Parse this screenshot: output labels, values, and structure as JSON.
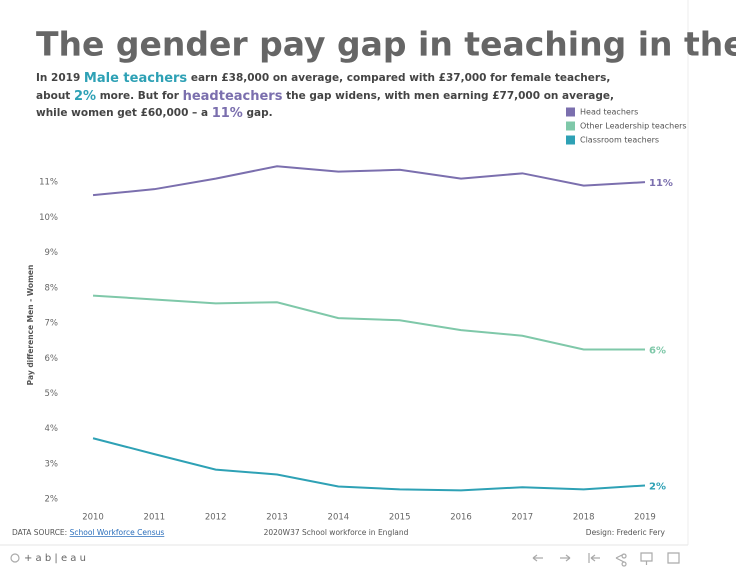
{
  "chart_data": {
    "type": "line",
    "title": "The gender pay gap in teaching in the UK",
    "subtitle_lines": [
      [
        "In 2019 ",
        "Male teachers",
        " earn £38,000 on average, compared with £37,000 for female teachers,"
      ],
      [
        "about ",
        "2%",
        " more. But for ",
        "headteachers",
        " the gap widens, with men earning £77,000 on average,"
      ],
      [
        "while women get £60,000 – a ",
        "11%",
        " gap."
      ]
    ],
    "y_label": "Pay difference Men - Women",
    "x": [
      2010,
      2011,
      2012,
      2013,
      2014,
      2015,
      2016,
      2017,
      2018,
      2019
    ],
    "xlim": [
      2009.6,
      2019.45
    ],
    "xticks": [
      2010,
      2011,
      2012,
      2013,
      2014,
      2015,
      2016,
      2017,
      2018,
      2019
    ],
    "ylim": [
      1.75,
      11.6
    ],
    "yticks": [
      {
        "value": 2,
        "label": "2%"
      },
      {
        "value": 3,
        "label": "3%"
      },
      {
        "value": 4,
        "label": "4%"
      },
      {
        "value": 5,
        "label": "5%"
      },
      {
        "value": 6,
        "label": "6%"
      },
      {
        "value": 7,
        "label": "7%"
      },
      {
        "value": 8,
        "label": "8%"
      },
      {
        "value": 9,
        "label": "9%"
      },
      {
        "value": 10,
        "label": "10%"
      },
      {
        "value": 11,
        "label": "11%"
      }
    ],
    "grid": false,
    "series": [
      {
        "name": "Head teachers",
        "color": "#7b6fae",
        "values": [
          10.63,
          10.8,
          11.1,
          11.45,
          11.3,
          11.35,
          11.1,
          11.25,
          10.9,
          11.0
        ],
        "value_labels": [
          null,
          null,
          null,
          null,
          null,
          null,
          null,
          null,
          null,
          "11%"
        ]
      },
      {
        "name": "Other Leadership teachers",
        "color": "#7fc8a9",
        "values": [
          7.78,
          7.67,
          7.56,
          7.59,
          7.14,
          7.08,
          6.8,
          6.64,
          6.25,
          6.25
        ],
        "value_labels": [
          null,
          null,
          null,
          null,
          null,
          null,
          null,
          null,
          null,
          "6%"
        ]
      },
      {
        "name": "Classroom teachers",
        "color": "#2ea1b5",
        "values": [
          3.73,
          3.28,
          2.84,
          2.7,
          2.36,
          2.28,
          2.25,
          2.34,
          2.28,
          2.39
        ],
        "value_labels": [
          null,
          null,
          null,
          null,
          null,
          null,
          null,
          null,
          null,
          "2%"
        ]
      }
    ],
    "footer": {
      "source_prefix": "DATA SOURCE: ",
      "source_link": "School Workforce Census",
      "center": "2020W37 School workforce in England",
      "credit": "Design: Frederic Fery"
    },
    "toolbar_logo": "+ a b | e a u"
  }
}
